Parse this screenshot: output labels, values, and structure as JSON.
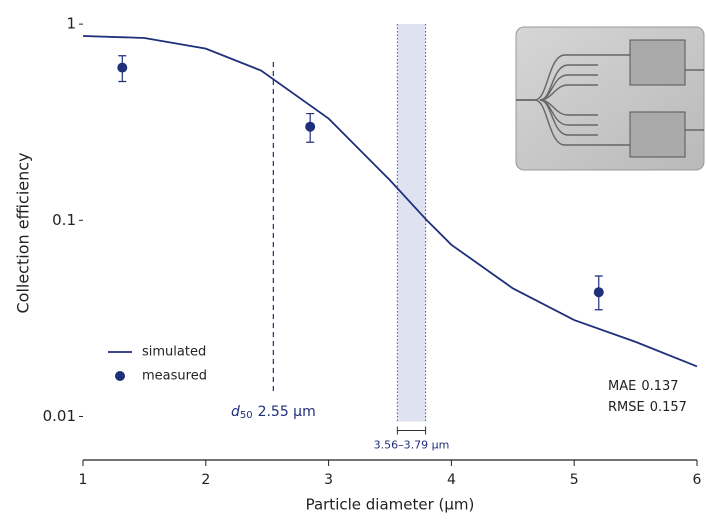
{
  "chart_data": {
    "type": "line",
    "x_label": "Particle diameter (µm)",
    "y_label": "Collection efficiency",
    "xlim": [
      1,
      6
    ],
    "xticks": [
      1,
      2,
      3,
      4,
      5,
      6
    ],
    "ylim": [
      0.006,
      1.1
    ],
    "yticks": [
      1,
      0.1,
      0.01
    ],
    "log_y": true,
    "legend": "lower left",
    "series": [
      {
        "name": "simulated",
        "color": "#1f2f7a",
        "x": [
          1,
          1.5,
          2,
          2.45,
          3,
          3.5,
          3.8,
          4,
          4.5,
          5,
          5.5,
          6
        ],
        "values": [
          0.87,
          0.85,
          0.75,
          0.58,
          0.33,
          0.16,
          0.1,
          0.075,
          0.045,
          0.031,
          0.024,
          0.018
        ]
      },
      {
        "name": "measured",
        "color": "#1f2f7a",
        "x": [
          1.32,
          2.85,
          5.2
        ],
        "values": [
          0.6,
          0.3,
          0.043
        ],
        "lower": [
          0.51,
          0.25,
          0.035
        ],
        "upper": [
          0.69,
          0.35,
          0.052
        ]
      }
    ],
    "band": {
      "range": [
        3.56,
        3.79
      ],
      "label": "3.56–3.79 µm",
      "color": "#dfe2f0"
    },
    "d50": {
      "symbol": "d",
      "subscript": "50",
      "value": 2.55,
      "label": "2.55 µm"
    },
    "metrics": [
      {
        "name": "MAE",
        "value": 0.137
      },
      {
        "name": "RMSE",
        "value": 0.157
      }
    ]
  }
}
